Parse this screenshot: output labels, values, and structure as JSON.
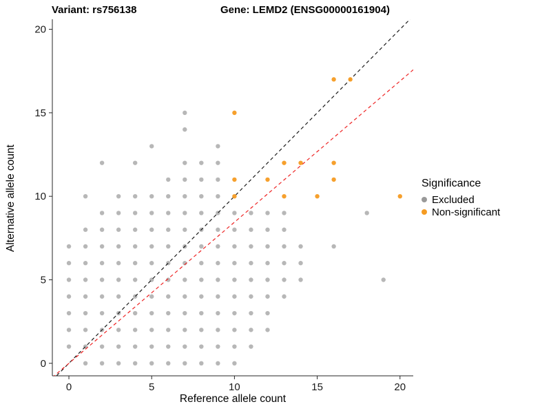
{
  "titles": {
    "variant": "Variant: rs756138",
    "gene": "Gene: LEMD2 (ENSG00000161904)"
  },
  "chart_data": {
    "type": "scatter",
    "title_left": "Variant: rs756138",
    "title_right": "Gene: LEMD2 (ENSG00000161904)",
    "xlabel": "Reference allele count",
    "ylabel": "Alternative allele count",
    "xlim": [
      -1,
      20.8
    ],
    "ylim": [
      -0.75,
      20.6
    ],
    "x_ticks": [
      0,
      5,
      10,
      15,
      20
    ],
    "y_ticks": [
      0,
      5,
      10,
      15,
      20
    ],
    "grid": false,
    "legend": {
      "title": "Significance",
      "position": "right"
    },
    "series": [
      {
        "name": "Excluded",
        "color": "#999999",
        "opacity": 0.7,
        "marker_radius": 3.2,
        "points": [
          [
            1,
            0
          ],
          [
            2,
            0
          ],
          [
            3,
            0
          ],
          [
            4,
            0
          ],
          [
            5,
            0
          ],
          [
            6,
            0
          ],
          [
            7,
            0
          ],
          [
            8,
            0
          ],
          [
            9,
            0
          ],
          [
            10,
            0
          ],
          [
            0,
            1
          ],
          [
            1,
            1
          ],
          [
            2,
            1
          ],
          [
            3,
            1
          ],
          [
            4,
            1
          ],
          [
            5,
            1
          ],
          [
            6,
            1
          ],
          [
            7,
            1
          ],
          [
            8,
            1
          ],
          [
            9,
            1
          ],
          [
            10,
            1
          ],
          [
            11,
            1
          ],
          [
            0,
            2
          ],
          [
            1,
            2
          ],
          [
            2,
            2
          ],
          [
            3,
            2
          ],
          [
            4,
            2
          ],
          [
            5,
            2
          ],
          [
            6,
            2
          ],
          [
            7,
            2
          ],
          [
            8,
            2
          ],
          [
            9,
            2
          ],
          [
            10,
            2
          ],
          [
            11,
            2
          ],
          [
            12,
            2
          ],
          [
            0,
            3
          ],
          [
            1,
            3
          ],
          [
            2,
            3
          ],
          [
            3,
            3
          ],
          [
            4,
            3
          ],
          [
            5,
            3
          ],
          [
            6,
            3
          ],
          [
            7,
            3
          ],
          [
            8,
            3
          ],
          [
            9,
            3
          ],
          [
            10,
            3
          ],
          [
            11,
            3
          ],
          [
            12,
            3
          ],
          [
            0,
            4
          ],
          [
            1,
            4
          ],
          [
            2,
            4
          ],
          [
            3,
            4
          ],
          [
            4,
            4
          ],
          [
            5,
            4
          ],
          [
            6,
            4
          ],
          [
            7,
            4
          ],
          [
            8,
            4
          ],
          [
            9,
            4
          ],
          [
            10,
            4
          ],
          [
            11,
            4
          ],
          [
            12,
            4
          ],
          [
            13,
            4
          ],
          [
            0,
            5
          ],
          [
            1,
            5
          ],
          [
            2,
            5
          ],
          [
            3,
            5
          ],
          [
            4,
            5
          ],
          [
            5,
            5
          ],
          [
            6,
            5
          ],
          [
            7,
            5
          ],
          [
            8,
            5
          ],
          [
            9,
            5
          ],
          [
            10,
            5
          ],
          [
            11,
            5
          ],
          [
            12,
            5
          ],
          [
            13,
            5
          ],
          [
            14,
            5
          ],
          [
            19,
            5
          ],
          [
            0,
            6
          ],
          [
            1,
            6
          ],
          [
            2,
            6
          ],
          [
            3,
            6
          ],
          [
            4,
            6
          ],
          [
            5,
            6
          ],
          [
            6,
            6
          ],
          [
            7,
            6
          ],
          [
            8,
            6
          ],
          [
            9,
            6
          ],
          [
            10,
            6
          ],
          [
            11,
            6
          ],
          [
            12,
            6
          ],
          [
            13,
            6
          ],
          [
            14,
            6
          ],
          [
            0,
            7
          ],
          [
            1,
            7
          ],
          [
            2,
            7
          ],
          [
            3,
            7
          ],
          [
            4,
            7
          ],
          [
            5,
            7
          ],
          [
            6,
            7
          ],
          [
            7,
            7
          ],
          [
            8,
            7
          ],
          [
            9,
            7
          ],
          [
            10,
            7
          ],
          [
            11,
            7
          ],
          [
            12,
            7
          ],
          [
            13,
            7
          ],
          [
            14,
            7
          ],
          [
            16,
            7
          ],
          [
            1,
            8
          ],
          [
            2,
            8
          ],
          [
            3,
            8
          ],
          [
            4,
            8
          ],
          [
            5,
            8
          ],
          [
            6,
            8
          ],
          [
            7,
            8
          ],
          [
            8,
            8
          ],
          [
            9,
            8
          ],
          [
            10,
            8
          ],
          [
            11,
            8
          ],
          [
            12,
            8
          ],
          [
            13,
            8
          ],
          [
            2,
            9
          ],
          [
            3,
            9
          ],
          [
            4,
            9
          ],
          [
            5,
            9
          ],
          [
            6,
            9
          ],
          [
            7,
            9
          ],
          [
            8,
            9
          ],
          [
            9,
            9
          ],
          [
            10,
            9
          ],
          [
            11,
            9
          ],
          [
            12,
            9
          ],
          [
            13,
            9
          ],
          [
            18,
            9
          ],
          [
            1,
            10
          ],
          [
            3,
            10
          ],
          [
            4,
            10
          ],
          [
            5,
            10
          ],
          [
            6,
            10
          ],
          [
            7,
            10
          ],
          [
            8,
            10
          ],
          [
            9,
            10
          ],
          [
            6,
            11
          ],
          [
            7,
            11
          ],
          [
            8,
            11
          ],
          [
            9,
            11
          ],
          [
            2,
            12
          ],
          [
            4,
            12
          ],
          [
            7,
            12
          ],
          [
            8,
            12
          ],
          [
            9,
            12
          ],
          [
            5,
            13
          ],
          [
            9,
            13
          ],
          [
            7,
            14
          ],
          [
            7,
            15
          ]
        ]
      },
      {
        "name": "Non-significant",
        "color": "#F59B22",
        "opacity": 0.95,
        "marker_radius": 3.2,
        "points": [
          [
            10,
            10
          ],
          [
            10,
            11
          ],
          [
            10,
            15
          ],
          [
            12,
            11
          ],
          [
            13,
            10
          ],
          [
            13,
            12
          ],
          [
            14,
            12
          ],
          [
            15,
            10
          ],
          [
            16,
            11
          ],
          [
            16,
            12
          ],
          [
            16,
            17
          ],
          [
            17,
            17
          ],
          [
            20,
            10
          ]
        ]
      }
    ],
    "reference_lines": [
      {
        "name": "identity-line",
        "slope": 1,
        "intercept": 0,
        "color": "#1A1A1A",
        "style": "dashed"
      },
      {
        "name": "expected-ratio-line",
        "slope": 0.845,
        "intercept": 0,
        "color": "#EE2222",
        "style": "dashed"
      }
    ]
  }
}
